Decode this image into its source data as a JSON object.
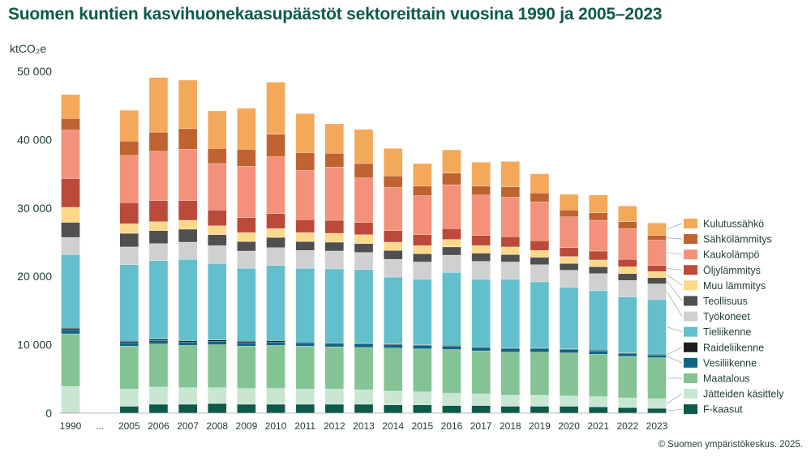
{
  "title": "Suomen kuntien kasvihuonekaasupäästöt sektoreittain vuosina 1990 ja 2005–2023",
  "credit": "© Suomen ympäristökeskus. 2025.",
  "chart_data": {
    "type": "bar",
    "stacked": true,
    "title": "Suomen kuntien kasvihuonekaasupäästöt sektoreittain vuosina 1990 ja 2005–2023",
    "ylabel": "ktCO₂e",
    "ylim": [
      0,
      50000
    ],
    "yticks": [
      0,
      10000,
      20000,
      30000,
      40000,
      50000
    ],
    "ytick_labels": [
      "0",
      "10 000",
      "20 000",
      "30 000",
      "40 000",
      "50 000"
    ],
    "grid": false,
    "legend_position": "right",
    "categories": [
      "1990",
      "...",
      "2005",
      "2006",
      "2007",
      "2008",
      "2009",
      "2010",
      "2011",
      "2012",
      "2013",
      "2014",
      "2015",
      "2016",
      "2017",
      "2018",
      "2019",
      "2020",
      "2021",
      "2022",
      "2023"
    ],
    "series": [
      {
        "name": "F-kaasut",
        "color": "#0e5a4a",
        "values": [
          100,
          null,
          1000,
          1300,
          1300,
          1400,
          1300,
          1300,
          1300,
          1300,
          1300,
          1200,
          1200,
          1100,
          1100,
          1000,
          1000,
          1000,
          900,
          800,
          700
        ]
      },
      {
        "name": "Jätteiden käsittely",
        "color": "#c8e6d2",
        "values": [
          3800,
          null,
          2500,
          2500,
          2400,
          2300,
          2300,
          2300,
          2200,
          2200,
          2100,
          2000,
          1900,
          1800,
          1700,
          1600,
          1600,
          1500,
          1500,
          1400,
          1400
        ]
      },
      {
        "name": "Maatalous",
        "color": "#84c494",
        "values": [
          7700,
          null,
          6300,
          6300,
          6200,
          6300,
          6200,
          6300,
          6300,
          6200,
          6200,
          6300,
          6300,
          6400,
          6300,
          6300,
          6300,
          6300,
          6200,
          6100,
          6000
        ]
      },
      {
        "name": "Vesiliikenne",
        "color": "#0e6588",
        "values": [
          600,
          null,
          500,
          500,
          500,
          500,
          500,
          500,
          500,
          500,
          500,
          500,
          500,
          500,
          500,
          500,
          500,
          500,
          500,
          400,
          400
        ]
      },
      {
        "name": "Raideliikenne",
        "color": "#1e1e1e",
        "values": [
          200,
          null,
          200,
          200,
          200,
          200,
          200,
          200,
          100,
          100,
          100,
          100,
          100,
          100,
          100,
          100,
          100,
          100,
          100,
          100,
          100
        ]
      },
      {
        "name": "Tieliikenne",
        "color": "#63bfcb",
        "values": [
          10800,
          null,
          11200,
          11500,
          11900,
          11200,
          10700,
          11000,
          10800,
          10800,
          10800,
          9800,
          9600,
          10700,
          9900,
          10100,
          9700,
          9000,
          8700,
          8200,
          8000
        ]
      },
      {
        "name": "Työkoneet",
        "color": "#d0d0d0",
        "values": [
          2500,
          null,
          2600,
          2500,
          2500,
          2600,
          2500,
          2600,
          2600,
          2600,
          2500,
          2600,
          2500,
          2500,
          2600,
          2500,
          2500,
          2500,
          2500,
          2400,
          2300
        ]
      },
      {
        "name": "Teollisuus",
        "color": "#505050",
        "values": [
          2200,
          null,
          2000,
          1900,
          1900,
          1600,
          1400,
          1500,
          1300,
          1300,
          1300,
          1300,
          1200,
          1200,
          1200,
          1100,
          1100,
          1000,
          1000,
          1000,
          900
        ]
      },
      {
        "name": "Muu lämmitys",
        "color": "#fcd98a",
        "values": [
          2200,
          null,
          1400,
          1300,
          1300,
          1300,
          1300,
          1300,
          1300,
          1300,
          1300,
          1200,
          1200,
          1100,
          1100,
          1100,
          1000,
          1000,
          1000,
          1000,
          900
        ]
      },
      {
        "name": "Öljylämmitys",
        "color": "#bb4a3a",
        "values": [
          4200,
          null,
          3100,
          3100,
          2900,
          2300,
          2200,
          2200,
          1900,
          1900,
          1800,
          1700,
          1600,
          1600,
          1500,
          1500,
          1400,
          1300,
          1300,
          1100,
          900
        ]
      },
      {
        "name": "Kaukolämpö",
        "color": "#f4917b",
        "values": [
          7100,
          null,
          6900,
          7200,
          7500,
          6800,
          7500,
          8300,
          7200,
          7800,
          6500,
          6300,
          5700,
          6400,
          5900,
          5800,
          5700,
          4500,
          4500,
          4500,
          3700
        ]
      },
      {
        "name": "Sähkölämmitys",
        "color": "#bf6330",
        "values": [
          1700,
          null,
          2100,
          2800,
          3000,
          2200,
          2500,
          3300,
          2600,
          2000,
          2100,
          1700,
          1400,
          1700,
          1300,
          1500,
          1300,
          1000,
          1100,
          1000,
          700
        ]
      },
      {
        "name": "Kulutussähkö",
        "color": "#f3a85a",
        "values": [
          3500,
          null,
          4500,
          8000,
          7100,
          5500,
          6000,
          7600,
          5700,
          4300,
          5000,
          4000,
          3300,
          3400,
          3500,
          3700,
          2800,
          2300,
          2600,
          2300,
          1800
        ]
      }
    ],
    "totals_approx": [
      46600,
      null,
      44300,
      49100,
      48700,
      44500,
      44700,
      48800,
      43800,
      42100,
      41600,
      38700,
      36500,
      38500,
      36700,
      37100,
      35100,
      31900,
      31900,
      30500,
      27700
    ]
  }
}
